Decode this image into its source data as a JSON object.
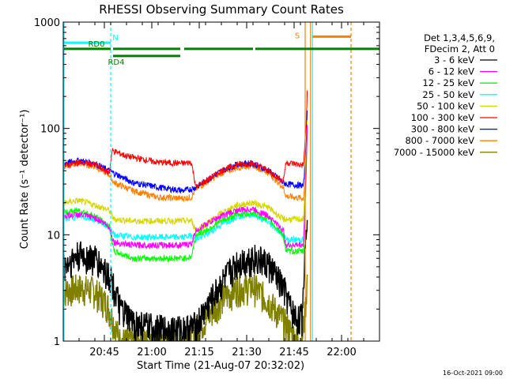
{
  "chart_data": {
    "type": "line",
    "title": "RHESSI Observing Summary Count Rates",
    "xlabel": "Start Time (21-Aug-07 20:32:02)",
    "ylabel": "Count Rate (s⁻¹ detector⁻¹)",
    "x_ticks": [
      "20:45",
      "21:00",
      "21:15",
      "21:30",
      "21:45",
      "22:00"
    ],
    "x_tick_minutes": [
      13,
      28,
      43,
      58,
      73,
      88
    ],
    "x_range_minutes": [
      0,
      100
    ],
    "y_scale": "log",
    "ylim": [
      1,
      1000
    ],
    "y_ticks": [
      "1",
      "10",
      "100",
      "1000"
    ],
    "y_tick_values": [
      1,
      10,
      100,
      1000
    ],
    "legend_header": [
      "Det 1,3,4,5,6,9,",
      "FDecim 2, Att 0"
    ],
    "legend_placement": "right",
    "footer_date": "16-Oct-2021 09:00",
    "series": [
      {
        "name": "3 - 6 keV",
        "color": "#000000",
        "x": [
          0,
          5,
          10,
          15,
          18,
          22,
          30,
          38,
          42,
          45,
          50,
          55,
          60,
          65,
          70,
          72,
          74,
          75.5,
          76.5,
          77.2
        ],
        "values": [
          5,
          6.5,
          6,
          4,
          2,
          1.5,
          1.3,
          1.3,
          1.4,
          2,
          3.5,
          5.5,
          6.2,
          5.3,
          3,
          2,
          1.6,
          1.7,
          8,
          20
        ]
      },
      {
        "name": "6 - 12 keV",
        "color": "#ff00ff",
        "x": [
          0,
          5,
          10,
          14.5,
          16,
          22,
          30,
          38,
          40.5,
          42,
          45,
          50,
          55,
          60,
          65,
          69.5,
          70.5,
          76,
          76.8,
          77.2
        ],
        "values": [
          15,
          15.5,
          14.5,
          12,
          8.5,
          8,
          8,
          8,
          8.2,
          11,
          12.5,
          15,
          17,
          17.5,
          15,
          11,
          8,
          8,
          40,
          120
        ]
      },
      {
        "name": "12 - 25 keV",
        "color": "#00ff00",
        "x": [
          0,
          5,
          10,
          14.5,
          16,
          22,
          30,
          38,
          40.5,
          42,
          45,
          50,
          55,
          60,
          65,
          69.5,
          70.5,
          76,
          76.8,
          77.2
        ],
        "values": [
          16,
          17,
          15,
          12,
          7,
          6,
          6,
          6,
          6.2,
          10,
          11,
          13.5,
          15.5,
          16,
          14,
          10,
          7,
          7,
          35,
          110
        ]
      },
      {
        "name": "25 - 50 keV",
        "color": "#00ffff",
        "x": [
          0,
          5,
          10,
          14.5,
          16,
          22,
          30,
          38,
          40.5,
          42,
          45,
          50,
          55,
          60,
          65,
          69.5,
          70.5,
          76,
          76.8,
          77.2
        ],
        "values": [
          14,
          15,
          14,
          12,
          10,
          9.5,
          9.5,
          9.5,
          9.8,
          9,
          10,
          12.5,
          15,
          15.5,
          13,
          10,
          9,
          9,
          40,
          130
        ]
      },
      {
        "name": "50 - 100 keV",
        "color": "#d7d700",
        "x": [
          0,
          5,
          10,
          14.5,
          16,
          22,
          30,
          38,
          40.5,
          42,
          45,
          50,
          55,
          60,
          65,
          69.5,
          70.5,
          76,
          76.8,
          77.2
        ],
        "values": [
          20,
          21,
          19,
          17,
          14,
          13.5,
          13.5,
          13.5,
          13.6,
          11,
          12.5,
          16,
          19,
          20,
          18,
          14,
          14,
          14,
          50,
          140
        ]
      },
      {
        "name": "100 - 300 keV",
        "color": "#ff0000",
        "x": [
          0,
          5,
          10,
          14.5,
          15.5,
          20,
          30,
          38,
          40.5,
          42,
          45,
          50,
          55,
          60,
          65,
          69.5,
          70.5,
          76,
          76.8,
          77.2
        ],
        "values": [
          44,
          48,
          46,
          38,
          62,
          55,
          48,
          47,
          48,
          28,
          32,
          40,
          46,
          47,
          40,
          32,
          48,
          45,
          110,
          230
        ]
      },
      {
        "name": "300 - 800 keV",
        "color": "#0000ff",
        "x": [
          0,
          5,
          10,
          14.5,
          16,
          22,
          30,
          38,
          40.5,
          42,
          45,
          50,
          55,
          60,
          65,
          69.5,
          70.5,
          76,
          76.8,
          77.2
        ],
        "values": [
          47,
          50,
          47,
          40,
          38,
          31,
          28,
          26,
          27,
          28,
          32,
          40,
          46,
          47,
          40,
          31,
          30,
          29,
          70,
          160
        ]
      },
      {
        "name": "800 - 7000 keV",
        "color": "#ff8000",
        "x": [
          0,
          5,
          10,
          14.5,
          16,
          22,
          30,
          38,
          40.5,
          42,
          45,
          50,
          55,
          60,
          65,
          69.5,
          70.5,
          76,
          76.8,
          77.2
        ],
        "values": [
          45,
          47,
          44,
          37,
          31,
          26,
          22.5,
          22,
          22.5,
          27,
          31,
          38,
          43,
          45,
          38,
          28,
          23,
          22,
          50,
          120
        ]
      },
      {
        "name": "7000 - 15000 keV",
        "color": "#808000",
        "x": [
          0,
          5,
          10,
          14,
          16,
          18,
          22,
          30,
          38,
          42,
          45,
          50,
          55,
          60,
          65,
          70,
          74,
          75.5,
          76.5,
          77.2
        ],
        "values": [
          3,
          3.2,
          3,
          2.2,
          1.5,
          1,
          1,
          1,
          1,
          1.3,
          1.6,
          2.5,
          3.2,
          3.3,
          2.4,
          1.5,
          1,
          1,
          2,
          4
        ]
      }
    ],
    "attenuator_bars": [
      {
        "label": "RD0",
        "y": 560,
        "segments": [
          [
            0,
            15
          ],
          [
            15.5,
            37
          ],
          [
            38,
            60
          ],
          [
            60.5,
            100
          ]
        ],
        "color": "#008000"
      },
      {
        "label": "RD4",
        "y": 480,
        "segments": [
          [
            15.5,
            37
          ]
        ],
        "color": "#008000"
      },
      {
        "label": "N",
        "y": 640,
        "segments": [
          [
            0,
            15
          ]
        ],
        "color": "#00ffff"
      },
      {
        "label": "S",
        "y": 730,
        "segments": [
          [
            78.5,
            91
          ]
        ],
        "color": "#ff8000"
      }
    ],
    "vlines": [
      {
        "x": 0,
        "color": "#00ffff",
        "style": "solid"
      },
      {
        "x": 15,
        "color": "#00ffff",
        "style": "dashed"
      },
      {
        "x": 76.5,
        "color": "#ff8000",
        "style": "solid"
      },
      {
        "x": 78.2,
        "color": "#ff8000",
        "style": "solid"
      },
      {
        "x": 78.8,
        "color": "#00ffff",
        "style": "solid"
      },
      {
        "x": 91,
        "color": "#ff8000",
        "style": "dashed"
      }
    ]
  }
}
